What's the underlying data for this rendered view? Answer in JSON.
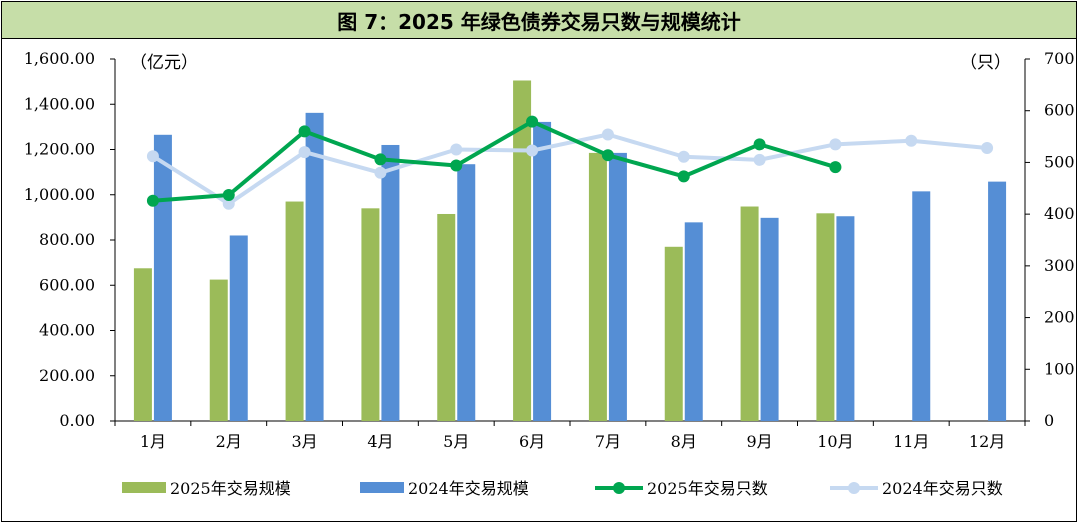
{
  "chart_data": {
    "type": "bar",
    "title": "图 7：2025 年绿色债券交易只数与规模统计",
    "categories": [
      "1月",
      "2月",
      "3月",
      "4月",
      "5月",
      "6月",
      "7月",
      "8月",
      "9月",
      "10月",
      "11月",
      "12月"
    ],
    "left_unit": "（亿元）",
    "right_unit": "（只）",
    "y_left": {
      "min": 0,
      "max": 1600,
      "step": 200,
      "tick_labels": [
        "0.00",
        "200.00",
        "400.00",
        "600.00",
        "800.00",
        "1,000.00",
        "1,200.00",
        "1,400.00",
        "1,600.00"
      ]
    },
    "y_right": {
      "min": 0,
      "max": 700,
      "step": 100,
      "tick_labels": [
        "0",
        "100",
        "200",
        "300",
        "400",
        "500",
        "600",
        "700"
      ]
    },
    "grid": false,
    "legend_position": "bottom",
    "series": [
      {
        "name": "2025年交易规模",
        "kind": "bar",
        "axis": "left",
        "color": "#9bbb59",
        "values": [
          675,
          625,
          970,
          940,
          915,
          1505,
          1185,
          770,
          948,
          918,
          null,
          null
        ]
      },
      {
        "name": "2024年交易规模",
        "kind": "bar",
        "axis": "left",
        "color": "#558ed5",
        "values": [
          1265,
          820,
          1362,
          1220,
          1135,
          1322,
          1185,
          878,
          898,
          905,
          1015,
          1058
        ]
      },
      {
        "name": "2025年交易只数",
        "kind": "line",
        "axis": "right",
        "color": "#00a650",
        "values": [
          426,
          437,
          560,
          506,
          494,
          579,
          514,
          473,
          535,
          491,
          null,
          null
        ]
      },
      {
        "name": "2024年交易只数",
        "kind": "line",
        "axis": "right",
        "color": "#c6d9f1",
        "values": [
          512,
          420,
          520,
          480,
          525,
          523,
          554,
          511,
          505,
          535,
          542,
          528
        ]
      }
    ]
  }
}
